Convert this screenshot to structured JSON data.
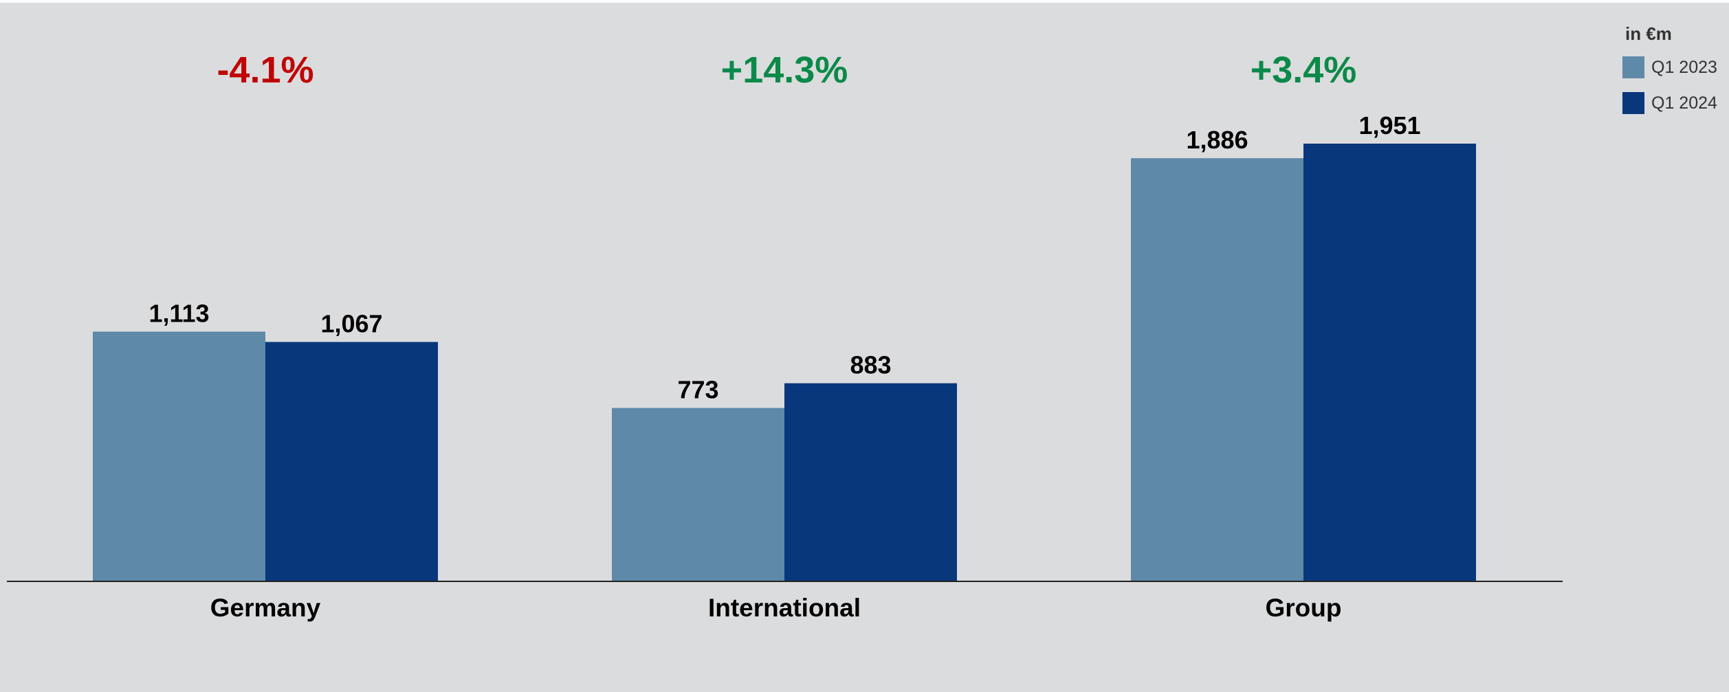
{
  "colors": {
    "background": "#dbdcde",
    "series_2023": "#5e89a8",
    "series_2024": "#08377b",
    "negative": "#c00000",
    "positive": "#0a8a4a",
    "axis": "#222222"
  },
  "legend": {
    "title": "in €m",
    "items": [
      {
        "label": "Q1 2023",
        "color": "#5e89a8"
      },
      {
        "label": "Q1 2024",
        "color": "#08377b"
      }
    ]
  },
  "chart_data": {
    "type": "bar",
    "categories": [
      "Germany",
      "International",
      "Group"
    ],
    "series": [
      {
        "name": "Q1 2023",
        "values": [
          1113,
          773,
          1886
        ],
        "labels": [
          "1,113",
          "773",
          "1,886"
        ]
      },
      {
        "name": "Q1 2024",
        "values": [
          1067,
          883,
          1951
        ],
        "labels": [
          "1,067",
          "883",
          "1,951"
        ]
      }
    ],
    "changes": [
      {
        "text": "-4.1%",
        "sign": "negative"
      },
      {
        "text": "+14.3%",
        "sign": "positive"
      },
      {
        "text": "+3.4%",
        "sign": "positive"
      }
    ],
    "unit": "in €m",
    "ylim": [
      0,
      1951
    ],
    "grid": false,
    "legend_position": "top-right"
  }
}
